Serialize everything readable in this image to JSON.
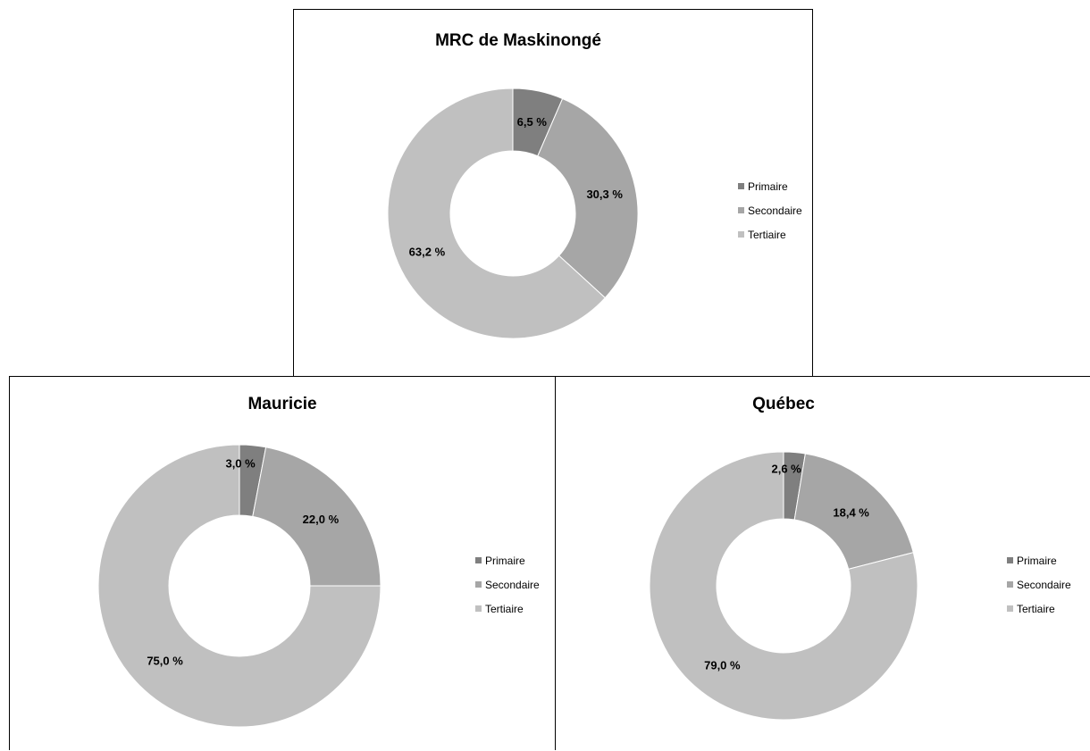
{
  "colors": {
    "primaire": "#7f7f7f",
    "secondaire": "#a6a6a6",
    "tertiaire": "#c0c0c0",
    "slice_border": "#ffffff"
  },
  "chart_data": [
    {
      "type": "pie",
      "variant": "donut",
      "title": "MRC de Maskinongé",
      "categories": [
        "Primaire",
        "Secondaire",
        "Tertiaire"
      ],
      "values": [
        6.5,
        30.3,
        63.2
      ],
      "data_labels": [
        "6,5 %",
        "30,3 %",
        "63,2 %"
      ],
      "legend": {
        "position": "right",
        "entries": [
          "Primaire",
          "Secondaire",
          "Tertiaire"
        ]
      }
    },
    {
      "type": "pie",
      "variant": "donut",
      "title": "Mauricie",
      "categories": [
        "Primaire",
        "Secondaire",
        "Tertiaire"
      ],
      "values": [
        3.0,
        22.0,
        75.0
      ],
      "data_labels": [
        "3,0 %",
        "22,0 %",
        "75,0 %"
      ],
      "legend": {
        "position": "right",
        "entries": [
          "Primaire",
          "Secondaire",
          "Tertiaire"
        ]
      }
    },
    {
      "type": "pie",
      "variant": "donut",
      "title": "Québec",
      "categories": [
        "Primaire",
        "Secondaire",
        "Tertiaire"
      ],
      "values": [
        2.6,
        18.4,
        79.0
      ],
      "data_labels": [
        "2,6 %",
        "18,4 %",
        "79,0 %"
      ],
      "legend": {
        "position": "right",
        "entries": [
          "Primaire",
          "Secondaire",
          "Tertiaire"
        ]
      }
    }
  ]
}
